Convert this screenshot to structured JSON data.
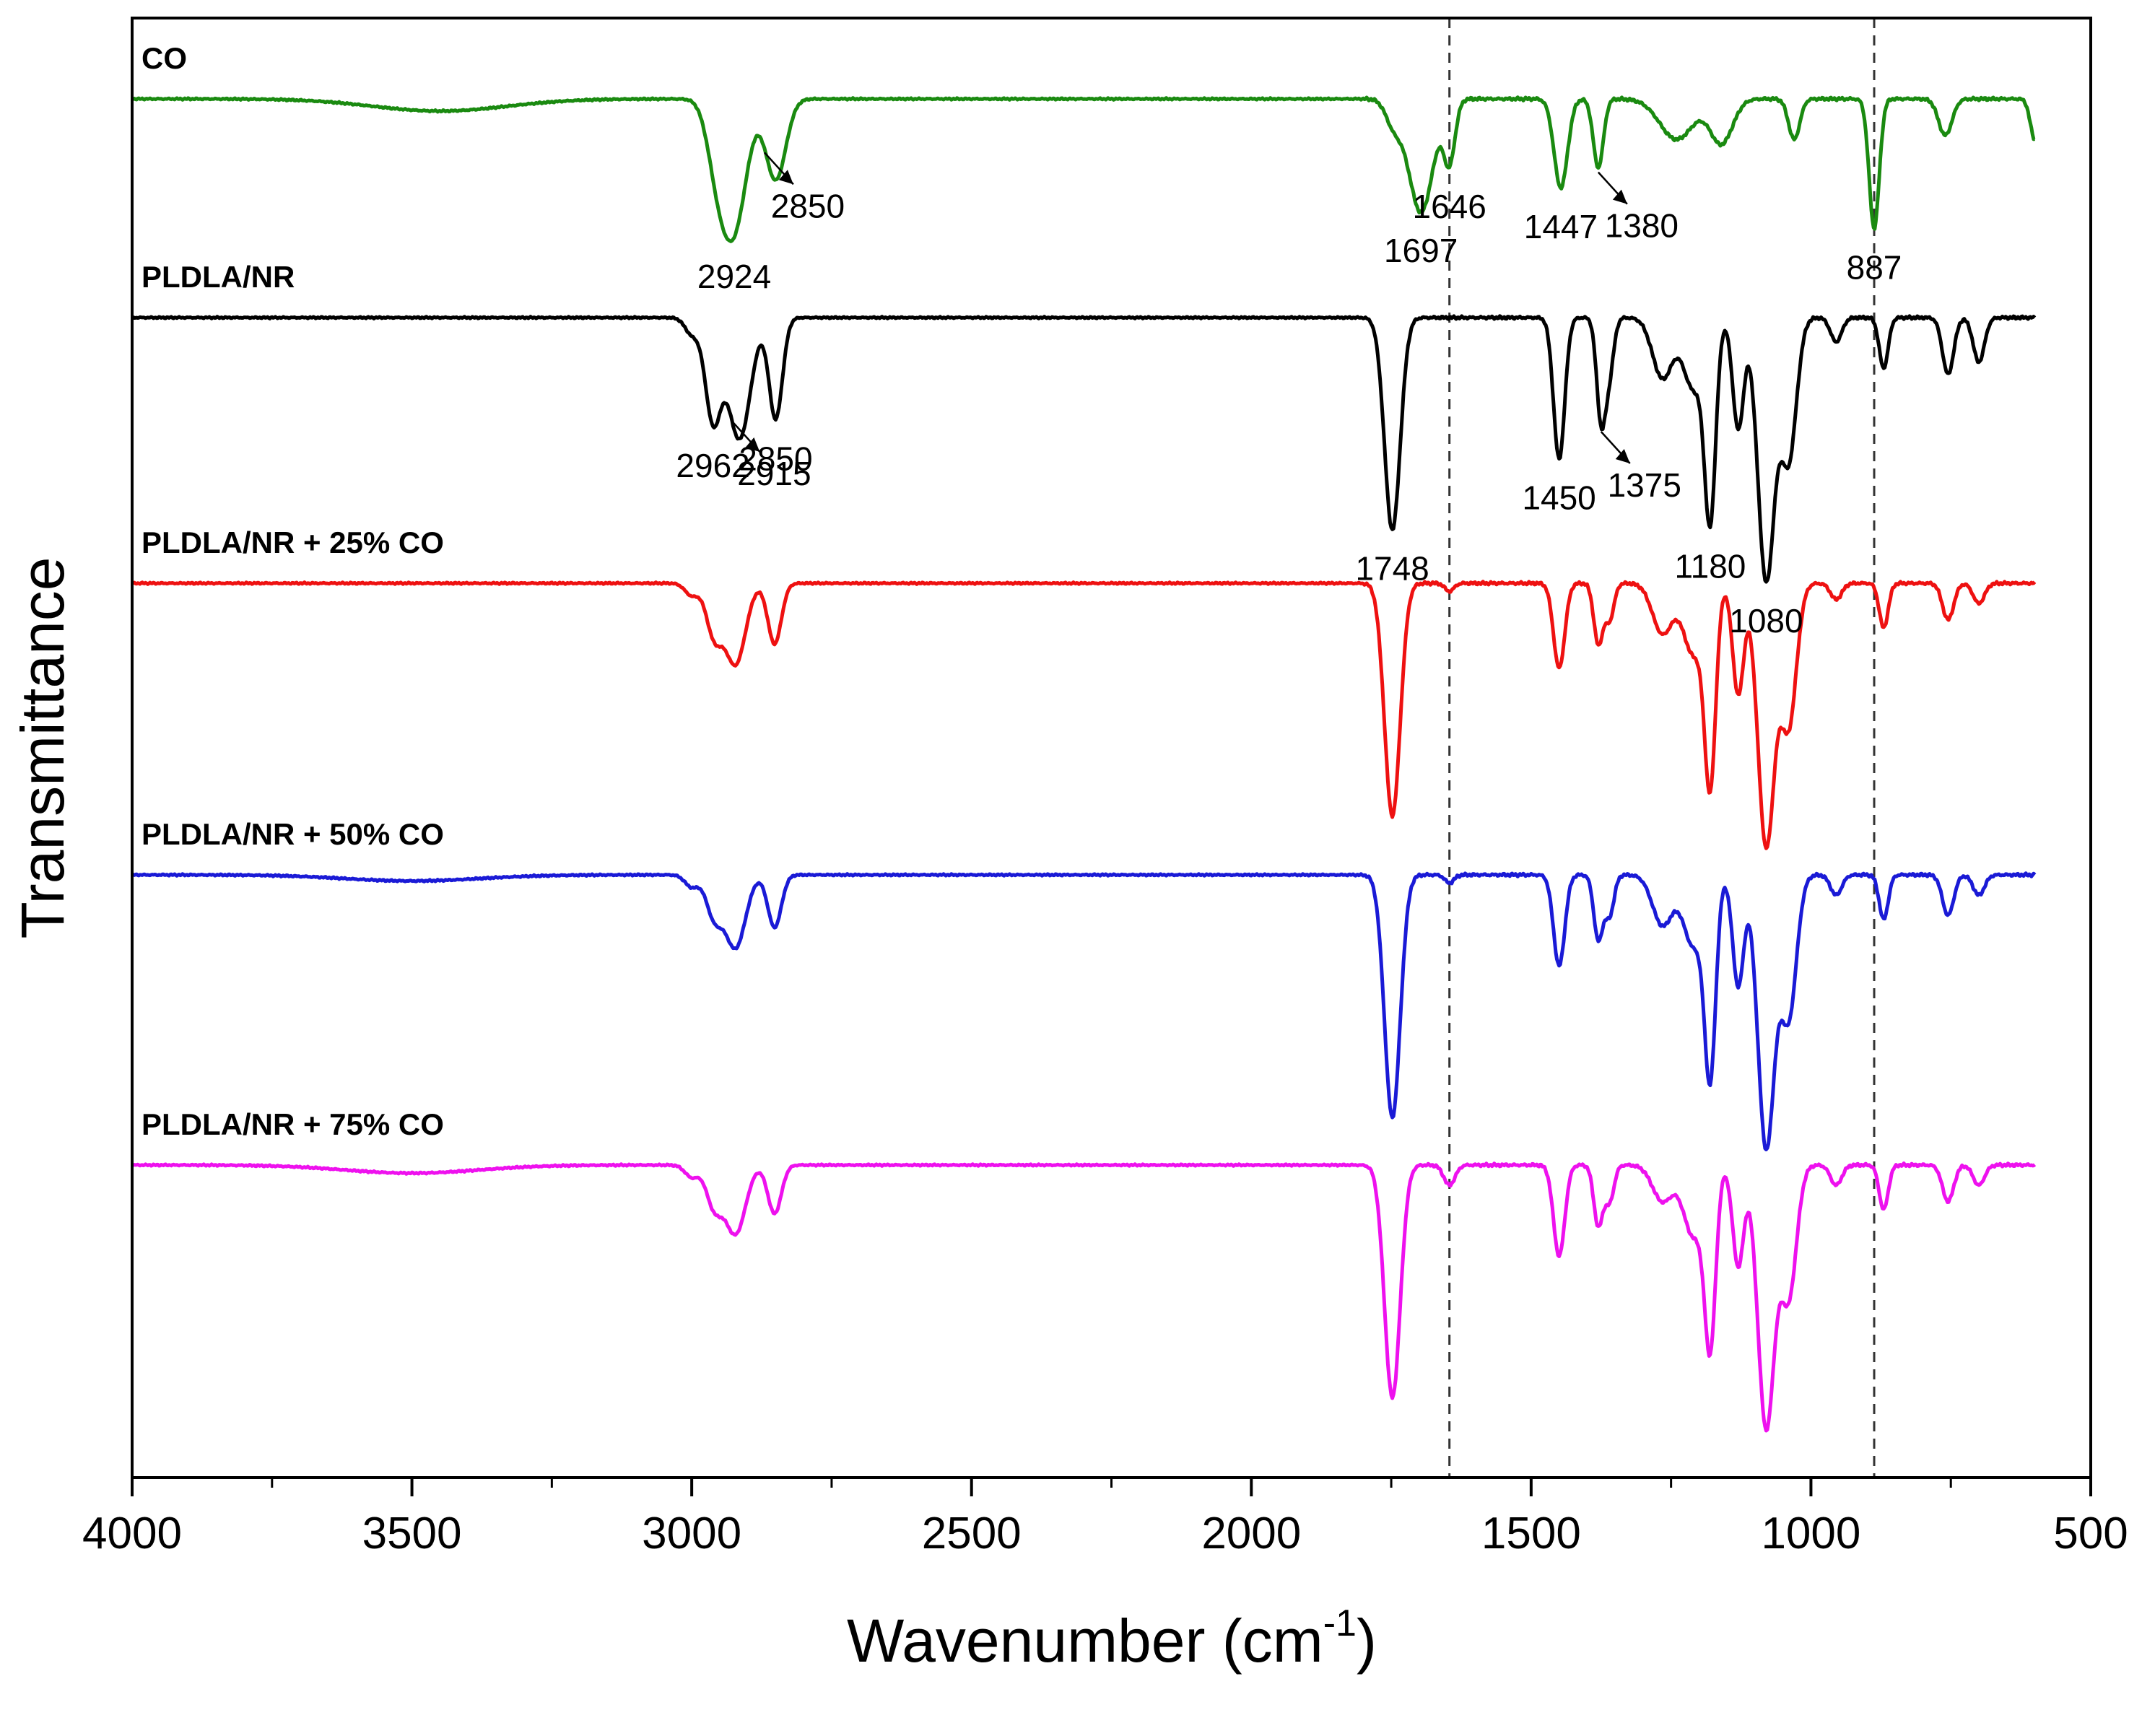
{
  "chart_data": {
    "type": "line",
    "title": "",
    "xlabel_main": "Wavenumber (cm",
    "xlabel_sup": "-1",
    "xlabel_close": ")",
    "ylabel": "Transmittance",
    "xlim": [
      4000,
      500
    ],
    "x_ticks": [
      4000,
      3500,
      3000,
      2500,
      2000,
      1500,
      1000,
      500
    ],
    "x_tick_labels": [
      "4000",
      "3500",
      "3000",
      "2500",
      "2000",
      "1500",
      "1000",
      "500"
    ],
    "x_range_data": [
      4000,
      600
    ],
    "reference_lines": [
      1646,
      887
    ],
    "series": [
      {
        "name": "CO",
        "color": "#1a8a10",
        "baseline": 0,
        "peaks": [
          {
            "x": 3450,
            "depth": 0.06,
            "width": 120
          },
          {
            "x": 2955,
            "depth": 0.28,
            "width": 18
          },
          {
            "x": 2924,
            "depth": 0.62,
            "width": 22
          },
          {
            "x": 2850,
            "depth": 0.4,
            "width": 18
          },
          {
            "x": 1746,
            "depth": 0.12,
            "width": 14
          },
          {
            "x": 1697,
            "depth": 0.56,
            "width": 22
          },
          {
            "x": 1646,
            "depth": 0.3,
            "width": 10
          },
          {
            "x": 1447,
            "depth": 0.44,
            "width": 12
          },
          {
            "x": 1380,
            "depth": 0.34,
            "width": 9
          },
          {
            "x": 1240,
            "depth": 0.2,
            "width": 30
          },
          {
            "x": 1160,
            "depth": 0.22,
            "width": 20
          },
          {
            "x": 1030,
            "depth": 0.2,
            "width": 10
          },
          {
            "x": 887,
            "depth": 0.64,
            "width": 9
          },
          {
            "x": 760,
            "depth": 0.18,
            "width": 12
          },
          {
            "x": 600,
            "depth": 0.2,
            "width": 8
          }
        ],
        "annotations": [
          {
            "text": "2924",
            "x": 2924
          },
          {
            "text": "2850",
            "x": 2850,
            "arrow_from": 2870
          },
          {
            "text": "1697",
            "x": 1697
          },
          {
            "text": "1646",
            "x": 1646
          },
          {
            "text": "1447",
            "x": 1447
          },
          {
            "text": "1380",
            "x": 1380,
            "arrow_from": 1380
          },
          {
            "text": "887",
            "x": 887
          }
        ]
      },
      {
        "name": "PLDLA/NR",
        "color": "#000000",
        "baseline": 1,
        "peaks": [
          {
            "x": 3000,
            "depth": 0.08,
            "width": 12
          },
          {
            "x": 2962,
            "depth": 0.5,
            "width": 14
          },
          {
            "x": 2915,
            "depth": 0.6,
            "width": 20
          },
          {
            "x": 2850,
            "depth": 0.5,
            "width": 12
          },
          {
            "x": 1748,
            "depth": 1.05,
            "width": 14
          },
          {
            "x": 1450,
            "depth": 0.7,
            "width": 10
          },
          {
            "x": 1375,
            "depth": 0.5,
            "width": 8
          },
          {
            "x": 1360,
            "depth": 0.25,
            "width": 8
          },
          {
            "x": 1265,
            "depth": 0.3,
            "width": 18
          },
          {
            "x": 1210,
            "depth": 0.35,
            "width": 18
          },
          {
            "x": 1180,
            "depth": 0.95,
            "width": 10
          },
          {
            "x": 1130,
            "depth": 0.55,
            "width": 10
          },
          {
            "x": 1080,
            "depth": 1.3,
            "width": 15
          },
          {
            "x": 1040,
            "depth": 0.7,
            "width": 14
          },
          {
            "x": 955,
            "depth": 0.12,
            "width": 10
          },
          {
            "x": 870,
            "depth": 0.25,
            "width": 8
          },
          {
            "x": 755,
            "depth": 0.28,
            "width": 10
          },
          {
            "x": 700,
            "depth": 0.22,
            "width": 10
          }
        ],
        "annotations": [
          {
            "text": "2962",
            "x": 2962
          },
          {
            "text": "2915",
            "x": 2915,
            "arrow_from": 2930
          },
          {
            "text": "2850",
            "x": 2850
          },
          {
            "text": "1748",
            "x": 1748
          },
          {
            "text": "1450",
            "x": 1450
          },
          {
            "text": "1375",
            "x": 1375,
            "arrow_from": 1375
          },
          {
            "text": "1180",
            "x": 1180
          },
          {
            "text": "1080",
            "x": 1080
          }
        ]
      },
      {
        "name": "PLDLA/NR + 25% CO",
        "color": "#ee1111",
        "baseline": 2,
        "peaks": [
          {
            "x": 3000,
            "depth": 0.06,
            "width": 12
          },
          {
            "x": 2960,
            "depth": 0.25,
            "width": 14
          },
          {
            "x": 2922,
            "depth": 0.4,
            "width": 18
          },
          {
            "x": 2852,
            "depth": 0.3,
            "width": 12
          },
          {
            "x": 1748,
            "depth": 1.15,
            "width": 14
          },
          {
            "x": 1646,
            "depth": 0.04,
            "width": 8
          },
          {
            "x": 1450,
            "depth": 0.42,
            "width": 10
          },
          {
            "x": 1380,
            "depth": 0.3,
            "width": 8
          },
          {
            "x": 1360,
            "depth": 0.18,
            "width": 8
          },
          {
            "x": 1265,
            "depth": 0.25,
            "width": 18
          },
          {
            "x": 1210,
            "depth": 0.35,
            "width": 18
          },
          {
            "x": 1180,
            "depth": 0.95,
            "width": 10
          },
          {
            "x": 1130,
            "depth": 0.55,
            "width": 10
          },
          {
            "x": 1080,
            "depth": 1.3,
            "width": 15
          },
          {
            "x": 1040,
            "depth": 0.7,
            "width": 14
          },
          {
            "x": 955,
            "depth": 0.08,
            "width": 10
          },
          {
            "x": 870,
            "depth": 0.22,
            "width": 8
          },
          {
            "x": 755,
            "depth": 0.18,
            "width": 10
          },
          {
            "x": 700,
            "depth": 0.1,
            "width": 10
          }
        ],
        "annotations": []
      },
      {
        "name": "PLDLA/NR + 50% CO",
        "color": "#1a1ad6",
        "baseline": 3,
        "peaks": [
          {
            "x": 3500,
            "depth": 0.03,
            "width": 120
          },
          {
            "x": 3000,
            "depth": 0.06,
            "width": 12
          },
          {
            "x": 2960,
            "depth": 0.2,
            "width": 14
          },
          {
            "x": 2922,
            "depth": 0.36,
            "width": 18
          },
          {
            "x": 2852,
            "depth": 0.26,
            "width": 12
          },
          {
            "x": 1748,
            "depth": 1.2,
            "width": 14
          },
          {
            "x": 1646,
            "depth": 0.04,
            "width": 8
          },
          {
            "x": 1450,
            "depth": 0.45,
            "width": 10
          },
          {
            "x": 1380,
            "depth": 0.32,
            "width": 8
          },
          {
            "x": 1360,
            "depth": 0.2,
            "width": 8
          },
          {
            "x": 1265,
            "depth": 0.25,
            "width": 18
          },
          {
            "x": 1210,
            "depth": 0.35,
            "width": 18
          },
          {
            "x": 1180,
            "depth": 0.95,
            "width": 10
          },
          {
            "x": 1130,
            "depth": 0.55,
            "width": 10
          },
          {
            "x": 1080,
            "depth": 1.35,
            "width": 15
          },
          {
            "x": 1040,
            "depth": 0.7,
            "width": 14
          },
          {
            "x": 955,
            "depth": 0.1,
            "width": 10
          },
          {
            "x": 870,
            "depth": 0.22,
            "width": 8
          },
          {
            "x": 755,
            "depth": 0.2,
            "width": 10
          },
          {
            "x": 700,
            "depth": 0.1,
            "width": 10
          }
        ],
        "annotations": []
      },
      {
        "name": "PLDLA/NR + 75% CO",
        "color": "#ee11ee",
        "baseline": 4,
        "peaks": [
          {
            "x": 3500,
            "depth": 0.04,
            "width": 120
          },
          {
            "x": 3000,
            "depth": 0.06,
            "width": 12
          },
          {
            "x": 2960,
            "depth": 0.2,
            "width": 14
          },
          {
            "x": 2922,
            "depth": 0.34,
            "width": 18
          },
          {
            "x": 2852,
            "depth": 0.24,
            "width": 12
          },
          {
            "x": 1748,
            "depth": 1.15,
            "width": 14
          },
          {
            "x": 1646,
            "depth": 0.1,
            "width": 10
          },
          {
            "x": 1450,
            "depth": 0.45,
            "width": 10
          },
          {
            "x": 1380,
            "depth": 0.3,
            "width": 8
          },
          {
            "x": 1360,
            "depth": 0.18,
            "width": 8
          },
          {
            "x": 1265,
            "depth": 0.18,
            "width": 18
          },
          {
            "x": 1210,
            "depth": 0.35,
            "width": 18
          },
          {
            "x": 1180,
            "depth": 0.85,
            "width": 10
          },
          {
            "x": 1130,
            "depth": 0.5,
            "width": 10
          },
          {
            "x": 1080,
            "depth": 1.3,
            "width": 15
          },
          {
            "x": 1040,
            "depth": 0.65,
            "width": 14
          },
          {
            "x": 955,
            "depth": 0.1,
            "width": 10
          },
          {
            "x": 870,
            "depth": 0.22,
            "width": 8
          },
          {
            "x": 755,
            "depth": 0.18,
            "width": 10
          },
          {
            "x": 700,
            "depth": 0.1,
            "width": 10
          }
        ],
        "annotations": []
      }
    ]
  }
}
